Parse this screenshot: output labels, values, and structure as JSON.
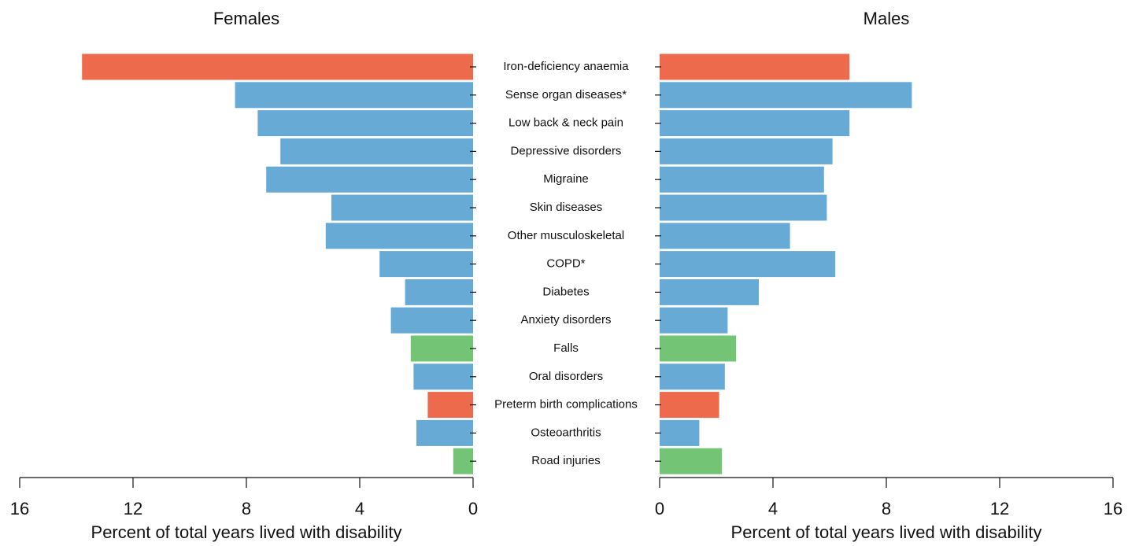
{
  "chart_data": [
    {
      "type": "bar",
      "orientation": "horizontal",
      "title": "Females",
      "xlabel": "Percent of total years lived with disability",
      "categories": [
        "Iron-deficiency anaemia",
        "Sense organ diseases*",
        "Low back & neck pain",
        "Depressive disorders",
        "Migraine",
        "Skin diseases",
        "Other musculoskeletal",
        "COPD*",
        "Diabetes",
        "Anxiety disorders",
        "Falls",
        "Oral disorders",
        "Preterm birth complications",
        "Osteoarthritis",
        "Road injuries"
      ],
      "values": [
        13.8,
        8.4,
        7.6,
        6.8,
        7.3,
        5.0,
        5.2,
        3.3,
        2.4,
        2.9,
        2.2,
        2.1,
        1.6,
        2.0,
        0.7
      ],
      "colors": [
        "#ee6a4d",
        "#68aad6",
        "#68aad6",
        "#68aad6",
        "#68aad6",
        "#68aad6",
        "#68aad6",
        "#68aad6",
        "#68aad6",
        "#68aad6",
        "#74c476",
        "#68aad6",
        "#ee6a4d",
        "#68aad6",
        "#74c476"
      ],
      "xlim": [
        16,
        0
      ],
      "xticks": [
        16,
        12,
        8,
        4,
        0
      ]
    },
    {
      "type": "bar",
      "orientation": "horizontal",
      "title": "Males",
      "xlabel": "Percent of total years lived with disability",
      "values": [
        6.7,
        8.9,
        6.7,
        6.1,
        5.8,
        5.9,
        4.6,
        6.2,
        3.5,
        2.4,
        2.7,
        2.3,
        2.1,
        1.4,
        2.2
      ],
      "colors": [
        "#ee6a4d",
        "#68aad6",
        "#68aad6",
        "#68aad6",
        "#68aad6",
        "#68aad6",
        "#68aad6",
        "#68aad6",
        "#68aad6",
        "#68aad6",
        "#74c476",
        "#68aad6",
        "#ee6a4d",
        "#68aad6",
        "#74c476"
      ],
      "xlim": [
        0,
        16
      ],
      "xticks": [
        0,
        4,
        8,
        12,
        16
      ]
    }
  ]
}
